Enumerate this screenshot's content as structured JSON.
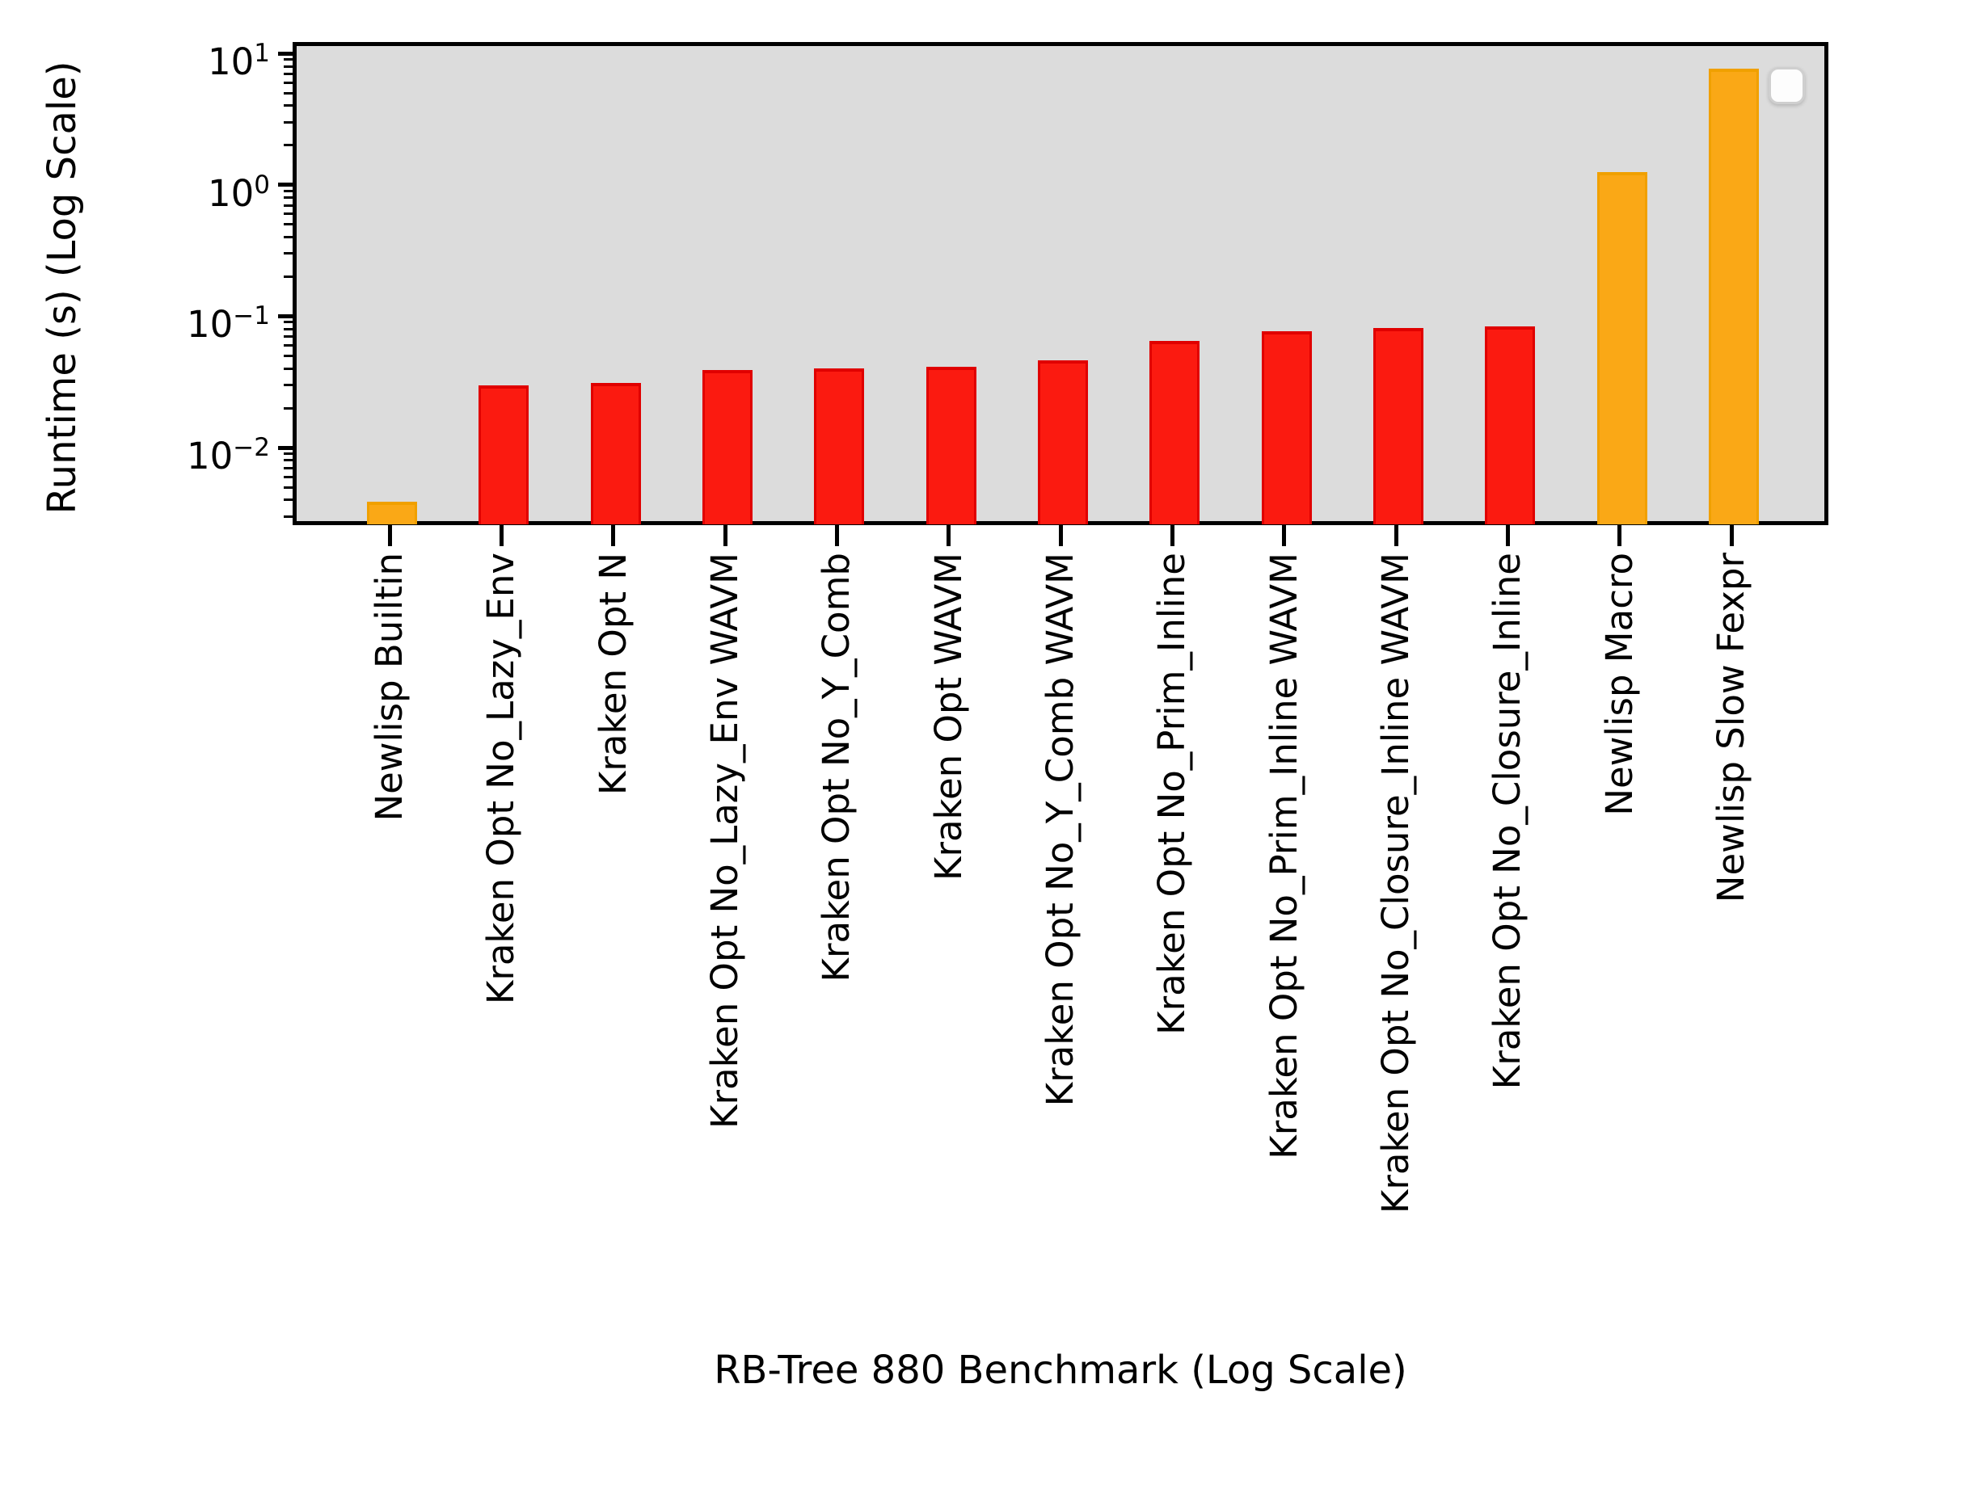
{
  "colors": {
    "figure_background": "#ffffff",
    "plot_background": "#dcdcdc",
    "frame": "#000000",
    "tick": "#000000",
    "bar_red": "#fb1a10",
    "bar_red_edge": "#e00000",
    "bar_orange": "#faa816",
    "bar_orange_edge": "#f0a000",
    "legend_background": "#fdfdfd",
    "legend_border": "#cfcfcf"
  },
  "chart_data": {
    "type": "bar",
    "title": "",
    "xlabel": "RB-Tree 880 Benchmark (Log Scale)",
    "ylabel": "Runtime (s) (Log Scale)",
    "yscale": "log",
    "ylim": [
      0.00276,
      11.4
    ],
    "grid": false,
    "legend_position": "upper right",
    "legend_entries": [],
    "ytick_exponents": [
      "1",
      "0",
      "−1",
      "−2"
    ],
    "categories": [
      "Newlisp Builtin",
      "Kraken Opt No_Lazy_Env",
      "Kraken Opt N",
      "Kraken Opt No_Lazy_Env WAVM",
      "Kraken Opt No_Y_Comb",
      "Kraken Opt WAVM",
      "Kraken Opt No_Y_Comb WAVM",
      "Kraken Opt No_Prim_Inline",
      "Kraken Opt No_Prim_Inline WAVM",
      "Kraken Opt No_Closure_Inline WAVM",
      "Kraken Opt No_Closure_Inline",
      "Newlisp Macro",
      "Newlisp Slow Fexpr"
    ],
    "values": [
      0.0039,
      0.03,
      0.031,
      0.039,
      0.04,
      0.041,
      0.046,
      0.065,
      0.077,
      0.081,
      0.084,
      1.25,
      7.7
    ],
    "bar_colors": [
      "#faa816",
      "#fb1a10",
      "#fb1a10",
      "#fb1a10",
      "#fb1a10",
      "#fb1a10",
      "#fb1a10",
      "#fb1a10",
      "#fb1a10",
      "#fb1a10",
      "#fb1a10",
      "#faa816",
      "#faa816"
    ],
    "bar_edge_colors": [
      "#f0a000",
      "#e00000",
      "#e00000",
      "#e00000",
      "#e00000",
      "#e00000",
      "#e00000",
      "#e00000",
      "#e00000",
      "#e00000",
      "#e00000",
      "#f0a000",
      "#f0a000"
    ]
  }
}
